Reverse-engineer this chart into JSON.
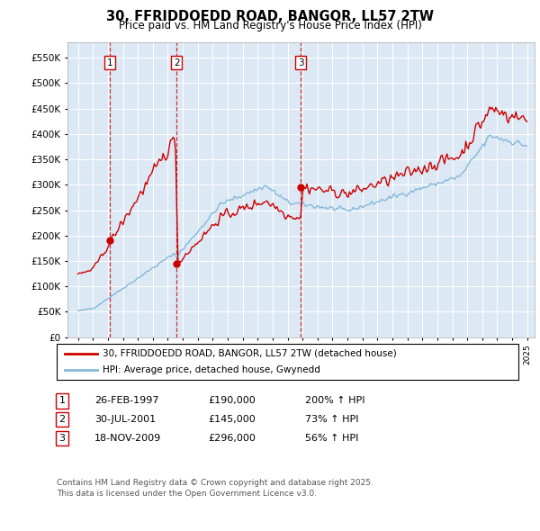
{
  "title": "30, FFRIDDOEDD ROAD, BANGOR, LL57 2TW",
  "subtitle": "Price paid vs. HM Land Registry's House Price Index (HPI)",
  "ylabel_ticks": [
    "£0",
    "£50K",
    "£100K",
    "£150K",
    "£200K",
    "£250K",
    "£300K",
    "£350K",
    "£400K",
    "£450K",
    "£500K",
    "£550K"
  ],
  "ytick_values": [
    0,
    50000,
    100000,
    150000,
    200000,
    250000,
    300000,
    350000,
    400000,
    450000,
    500000,
    550000
  ],
  "ylim": [
    0,
    580000
  ],
  "background_color": "#dce9f5",
  "sale_color": "#cc0000",
  "hpi_color": "#85b8d9",
  "sale_years": [
    1997.15,
    2001.58,
    2009.88
  ],
  "sale_prices": [
    190000,
    145000,
    296000
  ],
  "sale_labels": [
    "1",
    "2",
    "3"
  ],
  "legend_sale": "30, FFRIDDOEDD ROAD, BANGOR, LL57 2TW (detached house)",
  "legend_hpi": "HPI: Average price, detached house, Gwynedd",
  "footer": "Contains HM Land Registry data © Crown copyright and database right 2025.\nThis data is licensed under the Open Government Licence v3.0.",
  "table_entries": [
    {
      "num": "1",
      "date": "26-FEB-1997",
      "price": "£190,000",
      "hpi": "200% ↑ HPI"
    },
    {
      "num": "2",
      "date": "30-JUL-2001",
      "price": "£145,000",
      "hpi": "73% ↑ HPI"
    },
    {
      "num": "3",
      "date": "18-NOV-2009",
      "price": "£296,000",
      "hpi": "56% ↑ HPI"
    }
  ]
}
